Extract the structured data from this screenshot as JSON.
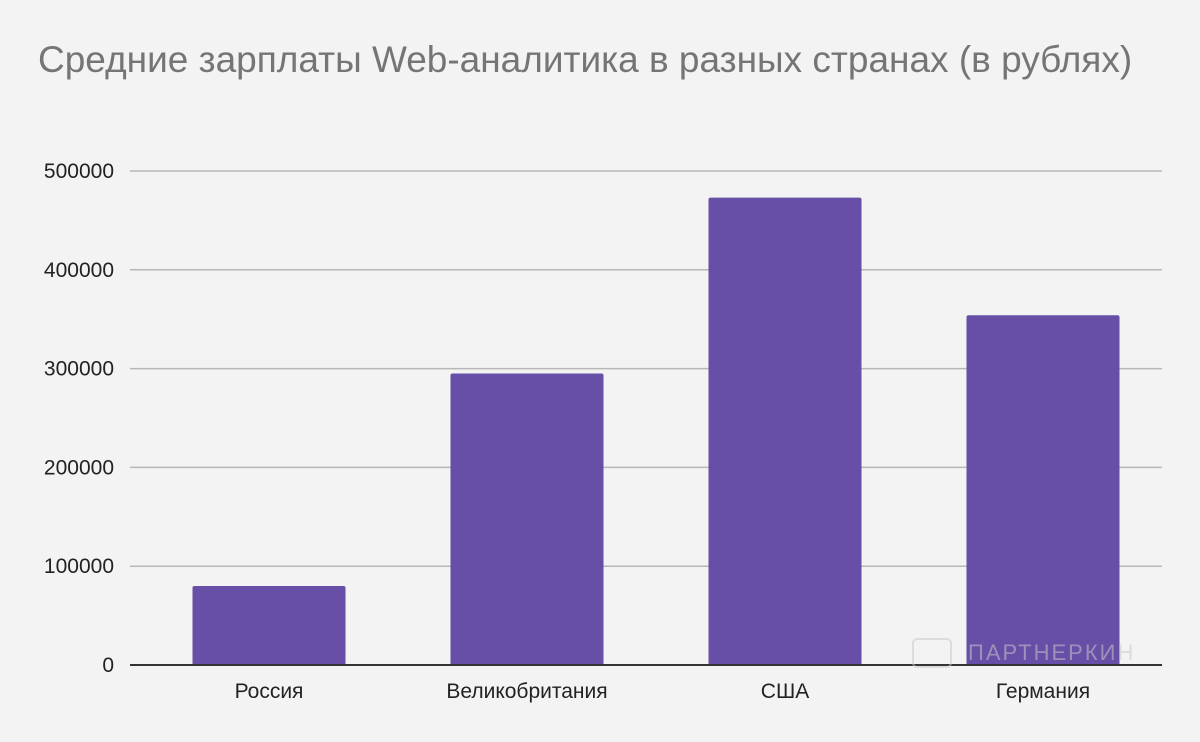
{
  "chart_data": {
    "type": "bar",
    "title": "Средние зарплаты Web-аналитика в разных странах (в рублях)",
    "categories": [
      "Россия",
      "Великобритания",
      "США",
      "Германия"
    ],
    "values": [
      80000,
      295000,
      473000,
      354000
    ],
    "ylim": [
      0,
      500000
    ],
    "yticks": [
      "0",
      "100000",
      "200000",
      "300000",
      "400000",
      "500000"
    ],
    "xlabel": "",
    "ylabel": "",
    "grid": true,
    "colors": {
      "bar": "#674ea7",
      "grid": "#b7b7b7",
      "axis": "#333333",
      "title": "#757575",
      "background": "#f3f3f3"
    }
  },
  "watermark": {
    "text": "ПАРТНЕРКИН"
  }
}
